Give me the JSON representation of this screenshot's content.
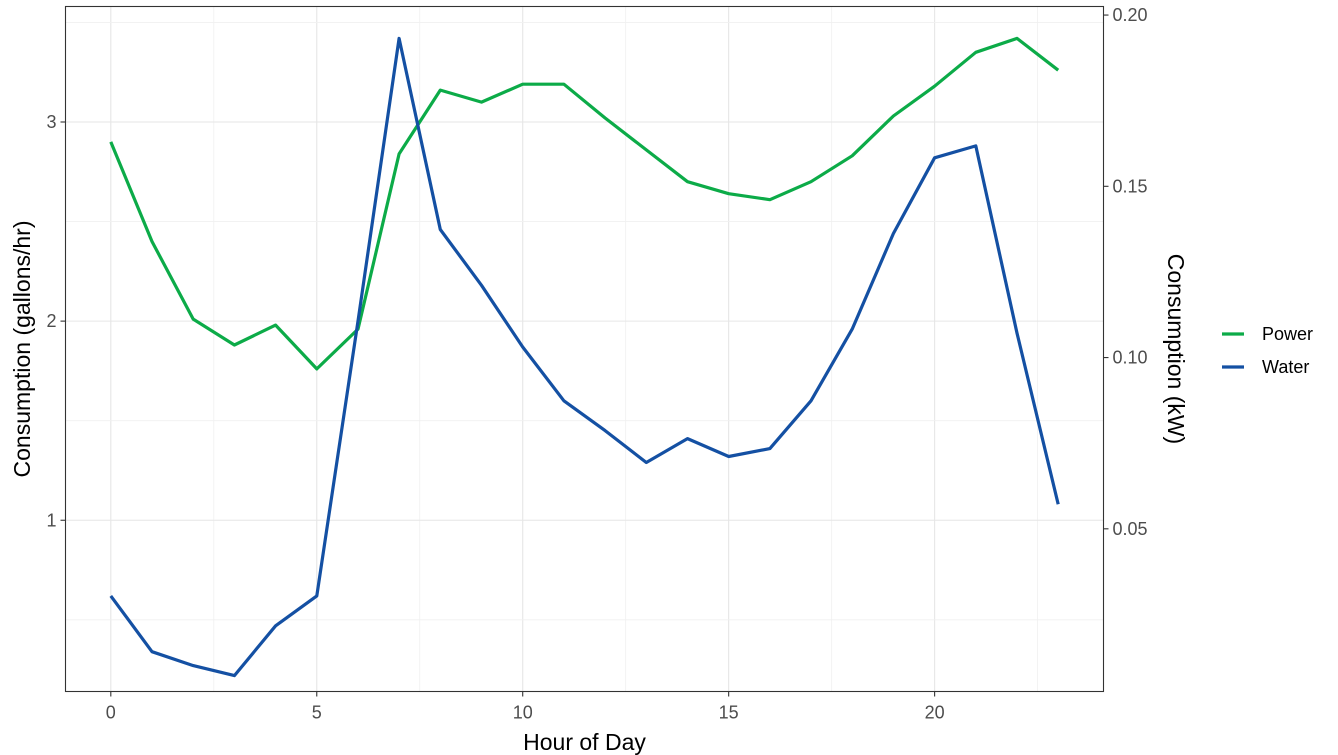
{
  "chart_data": {
    "type": "line",
    "title": "",
    "xlabel": "Hour of Day",
    "ylabel_left": "Consumption (gallons/hr)",
    "ylabel_right": "Consumption (kW)",
    "x": [
      0,
      1,
      2,
      3,
      4,
      5,
      6,
      7,
      8,
      9,
      10,
      11,
      12,
      13,
      14,
      15,
      16,
      17,
      18,
      19,
      20,
      21,
      22,
      23
    ],
    "xlim": [
      -1.1,
      24.1
    ],
    "ylim_left": [
      0.14,
      3.58
    ],
    "ylim_right": [
      0.0025,
      0.2025
    ],
    "x_ticks": [
      {
        "value": 0,
        "label": "0"
      },
      {
        "value": 5,
        "label": "5"
      },
      {
        "value": 10,
        "label": "10"
      },
      {
        "value": 15,
        "label": "15"
      },
      {
        "value": 20,
        "label": "20"
      }
    ],
    "y_left_ticks": [
      {
        "value": 1,
        "label": "1"
      },
      {
        "value": 2,
        "label": "2"
      },
      {
        "value": 3,
        "label": "3"
      }
    ],
    "y_right_ticks": [
      {
        "value": 0.05,
        "label": "0.05"
      },
      {
        "value": 0.1,
        "label": "0.10"
      },
      {
        "value": 0.15,
        "label": "0.15"
      },
      {
        "value": 0.2,
        "label": "0.20"
      }
    ],
    "grid": true,
    "legend_position": "right",
    "series": [
      {
        "name": "Power",
        "axis": "left",
        "color": "#0cab48",
        "values": [
          2.9,
          2.4,
          2.01,
          1.88,
          1.98,
          1.76,
          1.96,
          2.84,
          3.16,
          3.1,
          3.19,
          3.19,
          3.02,
          2.86,
          2.7,
          2.64,
          2.61,
          2.7,
          2.83,
          3.03,
          3.18,
          3.35,
          3.42,
          3.26
        ]
      },
      {
        "name": "Water",
        "axis": "left",
        "color": "#1450a3",
        "values": [
          0.62,
          0.34,
          0.27,
          0.22,
          0.47,
          0.62,
          2.0,
          3.42,
          2.46,
          2.18,
          1.87,
          1.6,
          1.45,
          1.29,
          1.41,
          1.32,
          1.36,
          1.6,
          1.96,
          2.44,
          2.82,
          2.88,
          1.94,
          1.08
        ]
      }
    ]
  }
}
